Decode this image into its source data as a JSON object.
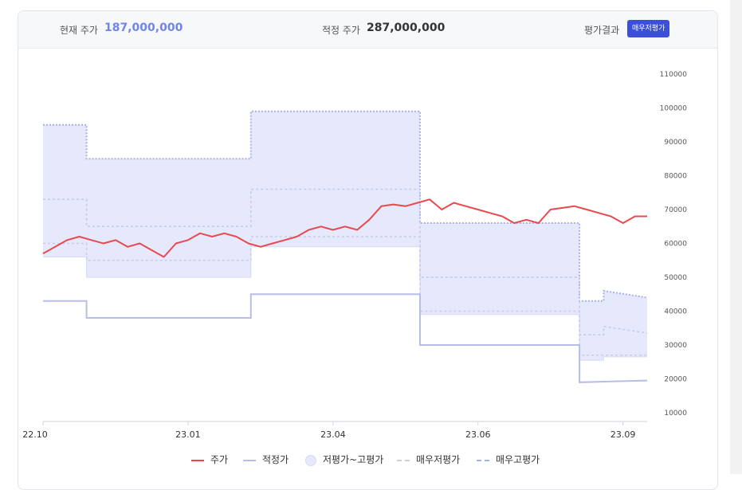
{
  "header": {
    "current_price_label": "현재 주가",
    "current_price_value": "187,000,000",
    "fair_price_label": "적정 주가",
    "fair_price_value": "287,000,000",
    "result_label": "평가결과",
    "result_badge": "매우저평가"
  },
  "colors": {
    "price": "#e8494f",
    "fair": "#b7bde6",
    "band_fill": "#e6e8fb",
    "band_edge": "#a9b0e8",
    "very_low": "#c9cde4",
    "accent": "#3b4fd8"
  },
  "chart_data": {
    "type": "line",
    "x_ticks": [
      "22.10",
      "23.01",
      "23.04",
      "23.06",
      "23.09"
    ],
    "y_ticks": [
      10000,
      20000,
      30000,
      40000,
      50000,
      60000,
      70000,
      80000,
      90000,
      100000,
      110000
    ],
    "ylim": [
      10000,
      110000
    ],
    "xlim": [
      0,
      12.5
    ],
    "x_tick_positions": [
      0,
      3,
      6,
      9,
      12
    ],
    "legend": [
      "주가",
      "적정가",
      "저평가~고평가",
      "매우저평가",
      "매우고평가"
    ],
    "legend_position": "bottom",
    "series": [
      {
        "name": "주가",
        "x": [
          0,
          0.25,
          0.5,
          0.75,
          1.0,
          1.25,
          1.5,
          1.75,
          2.0,
          2.25,
          2.5,
          2.75,
          3.0,
          3.25,
          3.5,
          3.75,
          4.0,
          4.25,
          4.5,
          4.75,
          5.0,
          5.25,
          5.5,
          5.75,
          6.0,
          6.25,
          6.5,
          6.75,
          7.0,
          7.25,
          7.5,
          7.75,
          8.0,
          8.25,
          8.5,
          8.75,
          9.0,
          9.25,
          9.5,
          9.75,
          10.0,
          10.25,
          10.5,
          10.75,
          11.0,
          11.25,
          11.5,
          11.75,
          12.0,
          12.25,
          12.5
        ],
        "values": [
          57000,
          59000,
          61000,
          62000,
          61000,
          60000,
          61000,
          59000,
          60000,
          58000,
          56000,
          60000,
          61000,
          63000,
          62000,
          63000,
          62000,
          60000,
          59000,
          60000,
          61000,
          62000,
          64000,
          65000,
          64000,
          65000,
          64000,
          67000,
          71000,
          71500,
          71000,
          72000,
          73000,
          70000,
          72000,
          71000,
          70000,
          69000,
          68000,
          66000,
          67000,
          66000,
          70000,
          70500,
          71000,
          70000,
          69000,
          68000,
          66000,
          68000,
          68000
        ]
      },
      {
        "name": "적정가",
        "x": [
          0,
          0.9,
          0.9,
          4.3,
          4.3,
          7.8,
          7.8,
          11.1,
          11.1,
          12.5
        ],
        "values": [
          43000,
          43000,
          38000,
          38000,
          45000,
          45000,
          30000,
          30000,
          19000,
          19500
        ]
      },
      {
        "name": "매우저평가",
        "x": [
          0,
          0.9,
          0.9,
          4.3,
          4.3,
          7.8,
          7.8,
          11.1,
          11.1,
          12.5
        ],
        "values": [
          60000,
          60000,
          55000,
          55000,
          62000,
          62000,
          40000,
          40000,
          27000,
          27000
        ]
      },
      {
        "name": "저평가",
        "x": [
          0,
          0.9,
          0.9,
          4.3,
          4.3,
          7.8,
          7.8,
          11.1,
          11.1,
          11.6,
          11.6,
          12.5
        ],
        "values": [
          56000,
          56000,
          50000,
          50000,
          59000,
          59000,
          39000,
          39000,
          25500,
          25500,
          26500,
          26500
        ]
      },
      {
        "name": "고평가",
        "x": [
          0,
          0.9,
          0.9,
          4.3,
          4.3,
          7.8,
          7.8,
          11.1,
          11.1,
          11.6,
          11.6,
          12.5
        ],
        "values": [
          95000,
          95000,
          85000,
          85000,
          99000,
          99000,
          66000,
          66000,
          43000,
          43000,
          46000,
          44000
        ]
      },
      {
        "name": "매우고평가",
        "x": [
          0,
          0.9,
          0.9,
          4.3,
          4.3,
          7.8,
          7.8,
          11.1,
          11.1,
          11.6,
          11.6,
          12.5
        ],
        "values": [
          73000,
          73000,
          65000,
          65000,
          76000,
          76000,
          50000,
          50000,
          33000,
          33000,
          35500,
          33500
        ]
      }
    ]
  }
}
